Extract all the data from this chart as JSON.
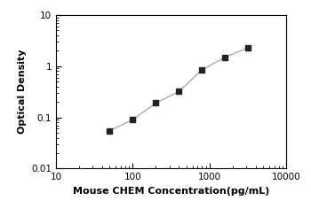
{
  "x_data": [
    50,
    100,
    200,
    400,
    800,
    1600,
    3200
  ],
  "y_data": [
    0.055,
    0.09,
    0.19,
    0.32,
    0.85,
    1.5,
    2.3
  ],
  "xlabel": "Mouse CHEM Concentration(pg/mL)",
  "ylabel": "Optical Density",
  "xlim": [
    20,
    10000
  ],
  "ylim": [
    0.01,
    10
  ],
  "x_ticks": [
    10,
    100,
    1000,
    10000
  ],
  "x_tick_labels": [
    "10",
    "100",
    "1000",
    "10000"
  ],
  "y_ticks": [
    0.01,
    0.1,
    1,
    10
  ],
  "y_tick_labels": [
    "0.01",
    "0.1",
    "1",
    "10"
  ],
  "line_color": "#aaaaaa",
  "marker_color": "#222222",
  "marker_style": "s",
  "marker_size": 4.5,
  "line_width": 1.0,
  "bg_color": "#ffffff",
  "font_size_label": 8,
  "font_size_tick": 7.5
}
